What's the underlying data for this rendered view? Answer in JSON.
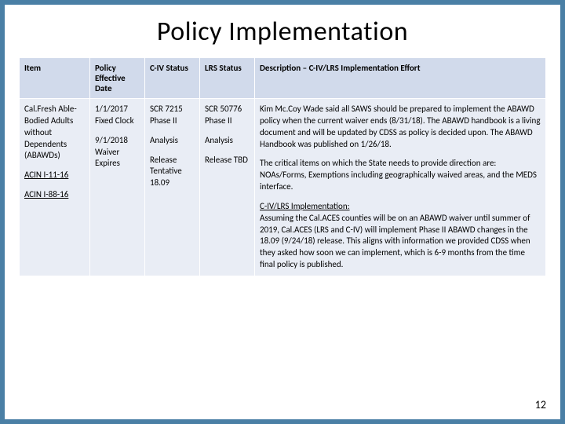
{
  "title": "Policy Implementation",
  "page_number": "12",
  "colors": {
    "border": "#4a7fa5",
    "header_bg": "#d1daeb",
    "row_bg": "#e9edf5",
    "text": "#000000"
  },
  "table": {
    "headers": {
      "item": "Item",
      "policy_date": "Policy Effective Date",
      "civ_status": "C-IV Status",
      "lrs_status": "LRS Status",
      "description": "Description – C-IV/LRS Implementation Effort"
    },
    "row": {
      "item": {
        "main": "Cal.Fresh Able-Bodied Adults without Dependents (ABAWDs)",
        "link1": "ACIN I-11-16",
        "link2": "ACIN I-88-16"
      },
      "policy_date": {
        "line1": "1/1/2017 Fixed Clock",
        "line2": "9/1/2018 Waiver Expires"
      },
      "civ_status": {
        "line1": "SCR 7215 Phase II",
        "line2": "Analysis",
        "line3": "Release Tentative 18.09"
      },
      "lrs_status": {
        "line1": "SCR 50776 Phase II",
        "line2": "Analysis",
        "line3": "Release TBD"
      },
      "description": {
        "p1": "Kim Mc.Coy Wade said all SAWS should be prepared to implement the ABAWD policy when the current waiver ends (8/31/18). The ABAWD handbook is a living document and will be updated by CDSS as policy is decided upon. The ABAWD Handbook was published on 1/26/18.",
        "p2": "The critical items on which the State needs to provide direction are: NOAs/Forms, Exemptions including geographically waived areas, and the MEDS interface.",
        "p3_label": "C-IV/LRS Implementation:",
        "p3_body": "Assuming the Cal.ACES counties will be on an ABAWD waiver until summer of 2019, Cal.ACES (LRS and C-IV) will implement Phase II ABAWD changes in the 18.09 (9/24/18) release. This aligns with information we provided CDSS when they asked how soon we can implement, which is 6-9 months from the time final policy is published."
      }
    }
  }
}
